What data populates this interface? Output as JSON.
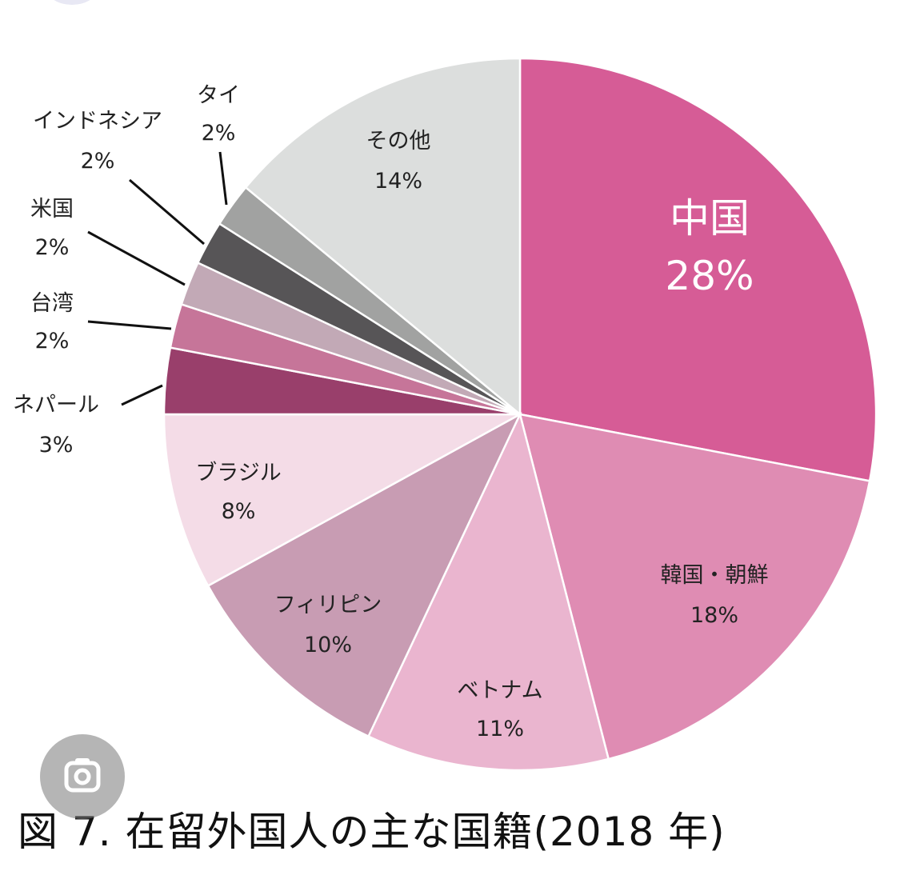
{
  "chart_data": {
    "type": "pie",
    "title": "図 7.  在留外国人の主な国籍(2018 年)",
    "start": "top",
    "direction": "clockwise",
    "slices": [
      {
        "label": "中国",
        "value": 28,
        "value_label": "28%",
        "color": "#d65c96"
      },
      {
        "label": "韓国・朝鮮",
        "value": 18,
        "value_label": "18%",
        "color": "#df8cb3"
      },
      {
        "label": "ベトナム",
        "value": 11,
        "value_label": "11%",
        "color": "#eab5cf"
      },
      {
        "label": "フィリピン",
        "value": 10,
        "value_label": "10%",
        "color": "#c89cb3"
      },
      {
        "label": "ブラジル",
        "value": 8,
        "value_label": "8%",
        "color": "#f4dce7"
      },
      {
        "label": "ネパール",
        "value": 3,
        "value_label": "3%",
        "color": "#993f6b"
      },
      {
        "label": "台湾",
        "value": 2,
        "value_label": "2%",
        "color": "#c67599"
      },
      {
        "label": "米国",
        "value": 2,
        "value_label": "2%",
        "color": "#c2a9b6"
      },
      {
        "label": "インドネシア",
        "value": 2,
        "value_label": "2%",
        "color": "#575557"
      },
      {
        "label": "タイ",
        "value": 2,
        "value_label": "2%",
        "color": "#a1a2a1"
      },
      {
        "label": "その他",
        "value": 14,
        "value_label": "14%",
        "color": "#dcdedd"
      }
    ]
  },
  "icons": {
    "lens": "camera-lens-icon"
  }
}
